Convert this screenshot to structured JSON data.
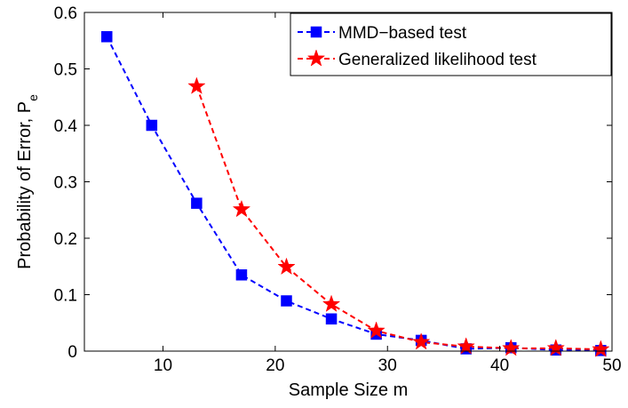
{
  "chart_data": {
    "type": "line",
    "xlabel": "Sample Size m",
    "ylabel": "Probability of Error, P",
    "ylabel_subscript": "e",
    "xlim": [
      3,
      50
    ],
    "ylim": [
      0,
      0.6
    ],
    "xticks": [
      10,
      20,
      30,
      40,
      50
    ],
    "yticks": [
      0,
      0.1,
      0.2,
      0.3,
      0.4,
      0.5,
      0.6
    ],
    "xtick_labels": [
      "10",
      "20",
      "30",
      "40",
      "50"
    ],
    "ytick_labels": [
      "0",
      "0.1",
      "0.2",
      "0.3",
      "0.4",
      "0.5",
      "0.6"
    ],
    "grid": false,
    "legend_position": "top-right",
    "series": [
      {
        "name": "MMD−based test",
        "color": "#0000ff",
        "marker": "square",
        "line_style": "dashed",
        "x": [
          5,
          9,
          13,
          17,
          21,
          25,
          29,
          33,
          37,
          41,
          45,
          49
        ],
        "y": [
          0.557,
          0.4,
          0.262,
          0.135,
          0.089,
          0.057,
          0.03,
          0.019,
          0.004,
          0.006,
          0.002,
          0.001
        ]
      },
      {
        "name": "Generalized likelihood test",
        "color": "#ff0000",
        "marker": "star",
        "line_style": "dashed",
        "x": [
          13,
          17,
          21,
          25,
          29,
          33,
          37,
          41,
          45,
          49
        ],
        "y": [
          0.469,
          0.251,
          0.149,
          0.083,
          0.036,
          0.016,
          0.008,
          0.005,
          0.005,
          0.003
        ]
      }
    ]
  }
}
